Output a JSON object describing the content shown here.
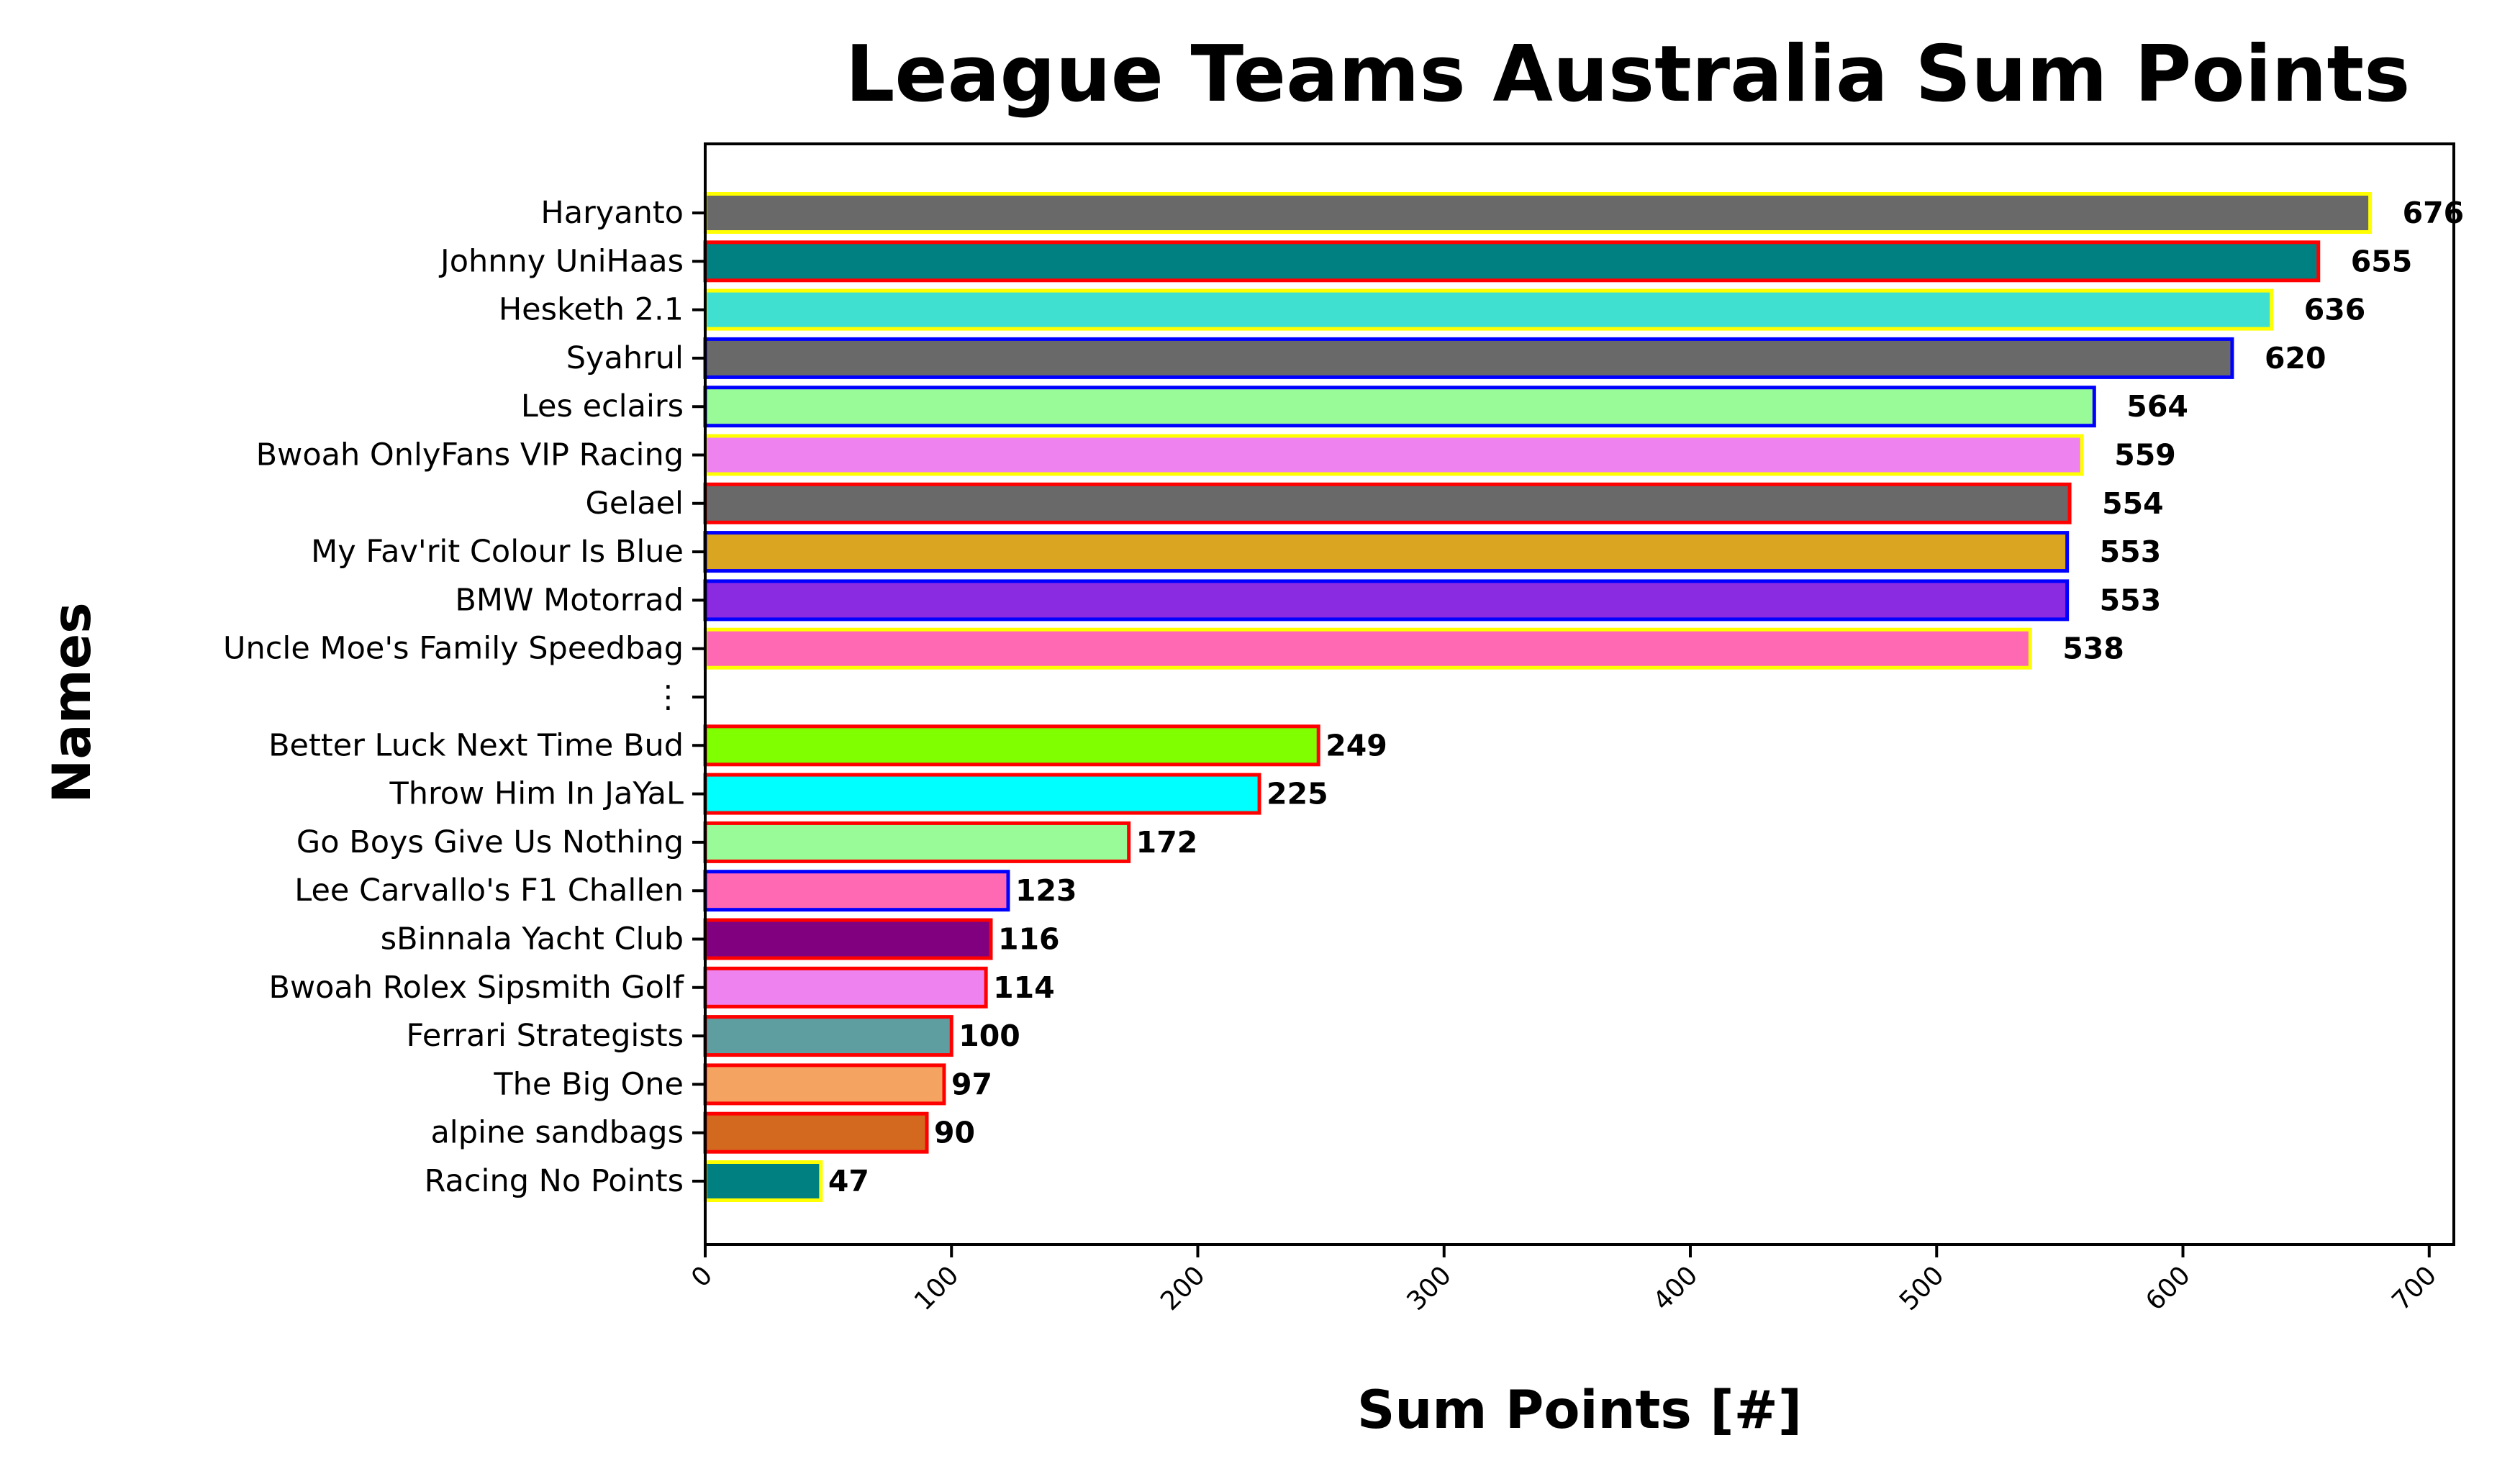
{
  "chart_data": {
    "type": "bar",
    "orientation": "horizontal",
    "title": "League Teams Australia Sum Points",
    "xlabel": "Sum Points [#]",
    "ylabel": "Names",
    "xlim": [
      0,
      710
    ],
    "xticks": [
      0,
      100,
      200,
      300,
      400,
      500,
      600,
      700
    ],
    "grid": false,
    "categories": [
      "Haryanto",
      "Johnny UniHaas",
      "Hesketh 2.1",
      "Syahrul",
      "Les eclairs",
      "Bwoah OnlyFans VIP Racing",
      "Gelael",
      "My Fav'rit Colour Is Blue",
      "BMW Motorrad",
      "Uncle Moe's Family Speedbag",
      "⋮",
      "Better Luck Next Time Bud",
      "Throw Him In JaYaL",
      "Go Boys Give Us Nothing",
      "Lee Carvallo's F1 Challen",
      "sBinnala Yacht Club",
      "Bwoah Rolex Sipsmith Golf",
      "Ferrari Strategists",
      "The Big One",
      "alpine sandbags",
      "Racing No Points"
    ],
    "values": [
      676,
      655,
      636,
      620,
      564,
      559,
      554,
      553,
      553,
      538,
      null,
      249,
      225,
      172,
      123,
      116,
      114,
      100,
      97,
      90,
      47
    ],
    "value_labels": [
      "676",
      "655",
      "636",
      "620",
      "564",
      "559",
      "554",
      "553",
      "553",
      "538",
      "",
      "249",
      "225",
      "172",
      "123",
      "116",
      "114",
      "100",
      "97",
      "90",
      "47"
    ],
    "fill_colors": [
      "#696969",
      "#008080",
      "#40e0d0",
      "#696969",
      "#98fb98",
      "#ee82ee",
      "#696969",
      "#daa520",
      "#8a2be2",
      "#ff69b4",
      "",
      "#7fff00",
      "#00ffff",
      "#98fb98",
      "#ff69b4",
      "#800080",
      "#ee82ee",
      "#5f9ea0",
      "#f4a460",
      "#d2691e",
      "#008080"
    ],
    "edge_colors": [
      "#ffff00",
      "#ff0000",
      "#ffff00",
      "#0000ff",
      "#0000ff",
      "#ffff00",
      "#ff0000",
      "#0000ff",
      "#0000ff",
      "#ffff00",
      "",
      "#ff0000",
      "#ff0000",
      "#ff0000",
      "#0000ff",
      "#ff0000",
      "#ff0000",
      "#ff0000",
      "#ff0000",
      "#ff0000",
      "#ffff00"
    ]
  }
}
